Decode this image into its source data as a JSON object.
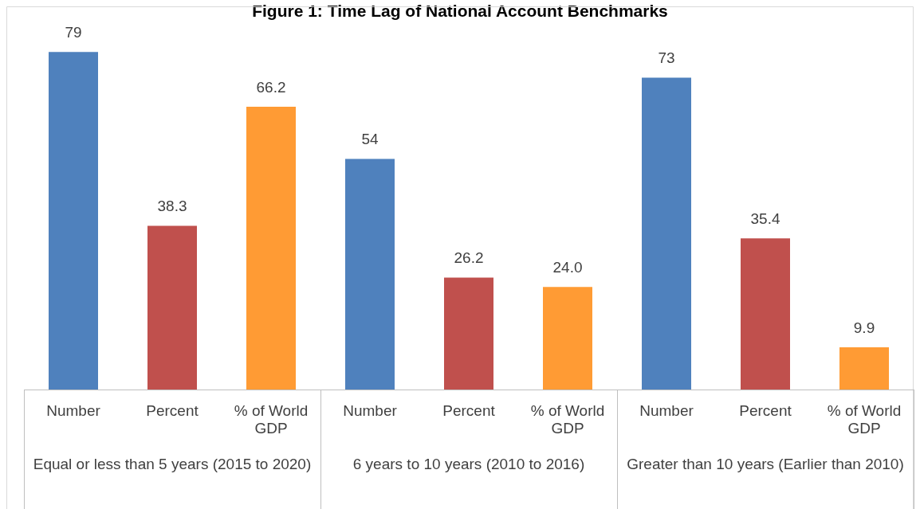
{
  "chart_data": {
    "type": "bar",
    "title": "Figure 1: Time Lag of National Account Benchmarks",
    "categories": [
      "Number",
      "Percent",
      "% of World GDP",
      "Number",
      "Percent",
      "% of World GDP",
      "Number",
      "Percent",
      "% of World GDP"
    ],
    "values": [
      79,
      38.3,
      66.2,
      54,
      26.2,
      24.0,
      73,
      35.4,
      9.9
    ],
    "value_labels": [
      "79",
      "38.3",
      "66.2",
      "54",
      "26.2",
      "24.0",
      "73",
      "35.4",
      "9.9"
    ],
    "colors": [
      "#4f81bd",
      "#c0504d",
      "#ff9b34",
      "#4f81bd",
      "#c0504d",
      "#ff9b34",
      "#4f81bd",
      "#c0504d",
      "#ff9b34"
    ],
    "annotations": [
      "Equal or less than 5 years (2015 to 2020)",
      "6 years to 10 years (2010 to 2016)",
      "Greater than 10 years (Earlier than 2010)"
    ],
    "legend": false,
    "grid": false
  }
}
